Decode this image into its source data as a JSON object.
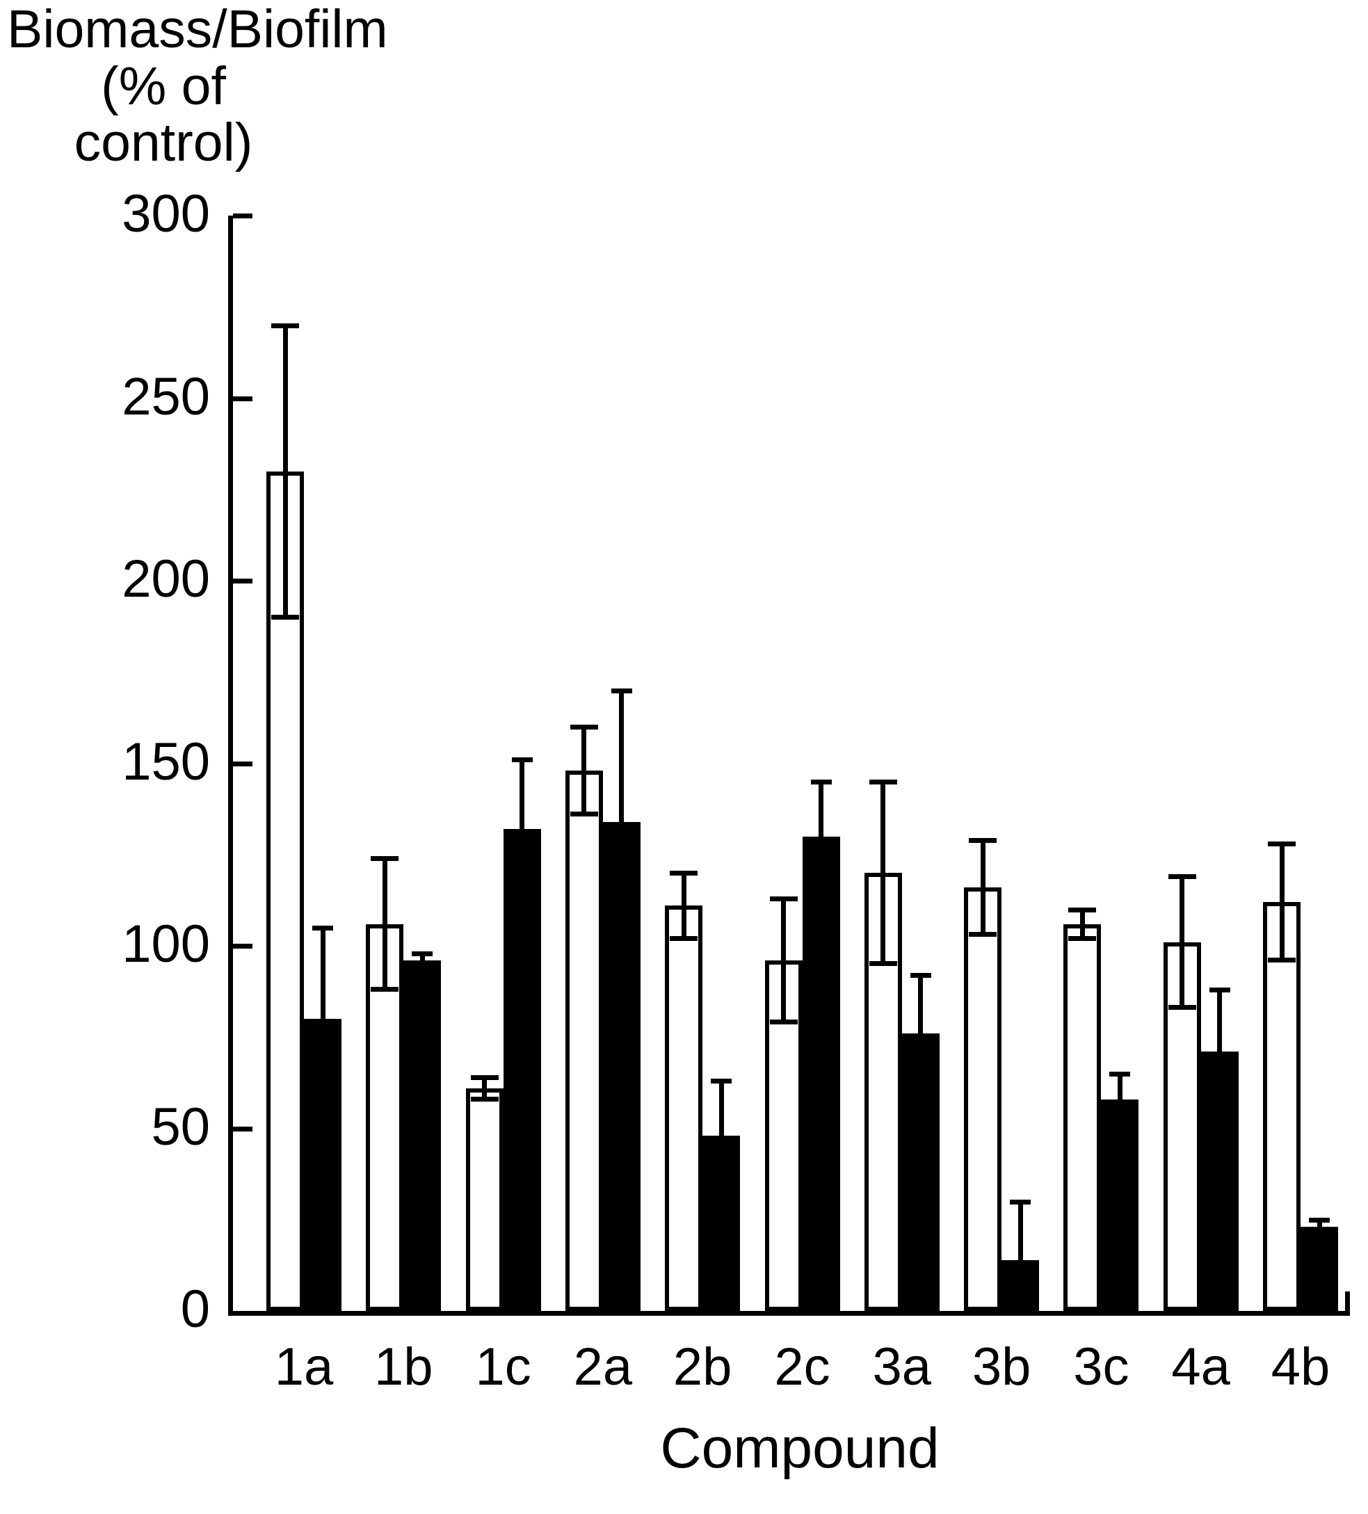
{
  "figure": {
    "y_axis_title_line1": "Biomass/Biofilm",
    "y_axis_title_line2": "(% of control)",
    "x_axis_title": "Compound"
  },
  "colors": {
    "foreground": "#000000",
    "background": "#ffffff",
    "open_bar_fill": "#ffffff",
    "filled_bar_fill": "#000000"
  },
  "chart_data": {
    "type": "bar",
    "title": "",
    "ylabel": "Biomass/Biofilm (% of control)",
    "xlabel": "Compound",
    "ylim": [
      0,
      300
    ],
    "ytick_interval": 50,
    "ytick_labels": [
      "300",
      "250",
      "200",
      "150",
      "100",
      "50",
      "0"
    ],
    "grid": false,
    "legend_position": "none",
    "categories": [
      "1a",
      "1b",
      "1c",
      "2a",
      "2b",
      "2c",
      "3a",
      "3b",
      "3c",
      "4a",
      "4b"
    ],
    "series": [
      {
        "name": "open-bars",
        "fill": "#ffffff",
        "stroke": "#000000",
        "values": [
          230,
          106,
          61,
          148,
          111,
          96,
          120,
          116,
          106,
          101,
          112
        ],
        "errors": [
          40,
          18,
          3,
          12,
          9,
          17,
          25,
          13,
          4,
          18,
          16
        ],
        "error_caps": "both"
      },
      {
        "name": "filled-bars",
        "fill": "#000000",
        "stroke": "#000000",
        "values": [
          80,
          96,
          132,
          134,
          48,
          130,
          76,
          14,
          58,
          71,
          23
        ],
        "errors": [
          25,
          2,
          19,
          36,
          15,
          15,
          16,
          16,
          7,
          17,
          2
        ],
        "error_caps": "upper"
      }
    ]
  }
}
